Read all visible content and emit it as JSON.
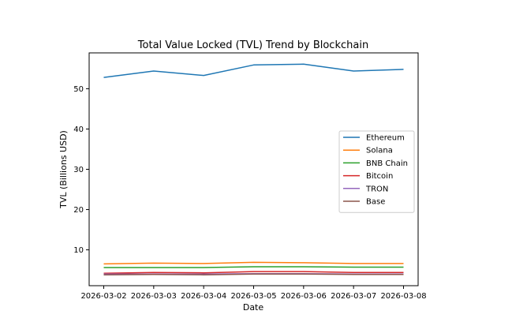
{
  "chart_data": {
    "type": "line",
    "title": "Total Value Locked (TVL) Trend by Blockchain",
    "xlabel": "Date",
    "ylabel": "TVL (Billions USD)",
    "categories": [
      "2026-03-02",
      "2026-03-03",
      "2026-03-04",
      "2026-03-05",
      "2026-03-06",
      "2026-03-07",
      "2026-03-08"
    ],
    "y_ticks": [
      10,
      20,
      30,
      40,
      50
    ],
    "ylim": [
      1.1,
      58.9
    ],
    "grid": false,
    "legend_position": "center-right",
    "series": [
      {
        "name": "Ethereum",
        "color": "#1f77b4",
        "values": [
          52.8,
          54.4,
          53.3,
          55.9,
          56.1,
          54.4,
          54.8
        ]
      },
      {
        "name": "Solana",
        "color": "#ff7f0e",
        "values": [
          6.5,
          6.7,
          6.6,
          6.9,
          6.8,
          6.6,
          6.6
        ]
      },
      {
        "name": "BNB Chain",
        "color": "#2ca02c",
        "values": [
          5.6,
          5.6,
          5.6,
          5.8,
          5.8,
          5.7,
          5.7
        ]
      },
      {
        "name": "Bitcoin",
        "color": "#d62728",
        "values": [
          4.2,
          4.4,
          4.3,
          4.6,
          4.6,
          4.4,
          4.4
        ]
      },
      {
        "name": "TRON",
        "color": "#9467bd",
        "values": [
          4.0,
          4.0,
          4.0,
          4.1,
          4.1,
          4.0,
          4.0
        ]
      },
      {
        "name": "Base",
        "color": "#8c564b",
        "values": [
          3.8,
          3.9,
          3.8,
          4.0,
          4.0,
          3.9,
          3.9
        ]
      }
    ]
  }
}
